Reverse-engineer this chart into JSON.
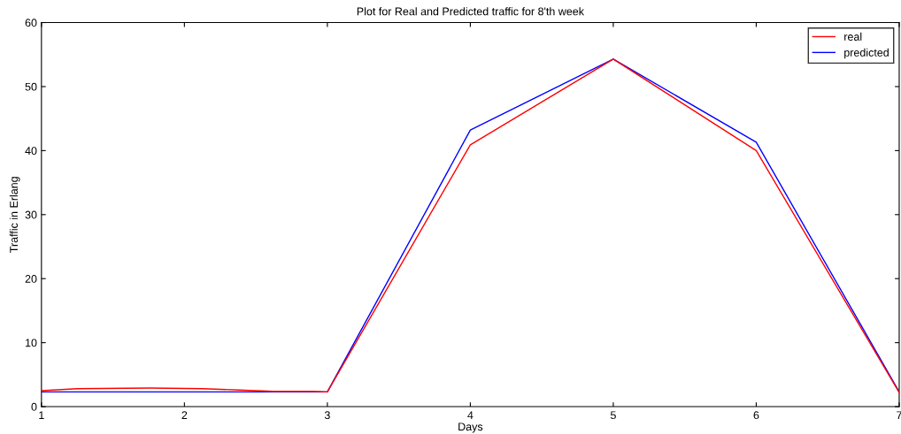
{
  "chart_data": {
    "type": "line",
    "title": "Plot for Real and Predicted traffic for 8'th week",
    "xlabel": "Days",
    "ylabel": "Traffic in Erlang",
    "series": [
      {
        "name": "real",
        "color": "#ff0000",
        "x": [
          1,
          1.25,
          1.76,
          2.13,
          2.38,
          2.62,
          2.89,
          3,
          4,
          5,
          6,
          7
        ],
        "values": [
          2.5,
          2.8,
          2.9,
          2.8,
          2.6,
          2.4,
          2.4,
          2.3,
          40.9,
          54.3,
          40.0,
          2.2
        ]
      },
      {
        "name": "predicted",
        "color": "#0000ff",
        "x": [
          1,
          2,
          3,
          4,
          5,
          6,
          7
        ],
        "values": [
          2.3,
          2.3,
          2.3,
          43.2,
          54.3,
          41.3,
          2.3
        ]
      }
    ],
    "xlim": [
      1,
      7
    ],
    "xticks": [
      1,
      2,
      3,
      4,
      5,
      6,
      7
    ],
    "ylim": [
      0,
      60
    ],
    "yticks": [
      0,
      10,
      20,
      30,
      40,
      50,
      60
    ],
    "grid": false,
    "legend": "top right",
    "marker": "none",
    "line_style": "solid"
  }
}
